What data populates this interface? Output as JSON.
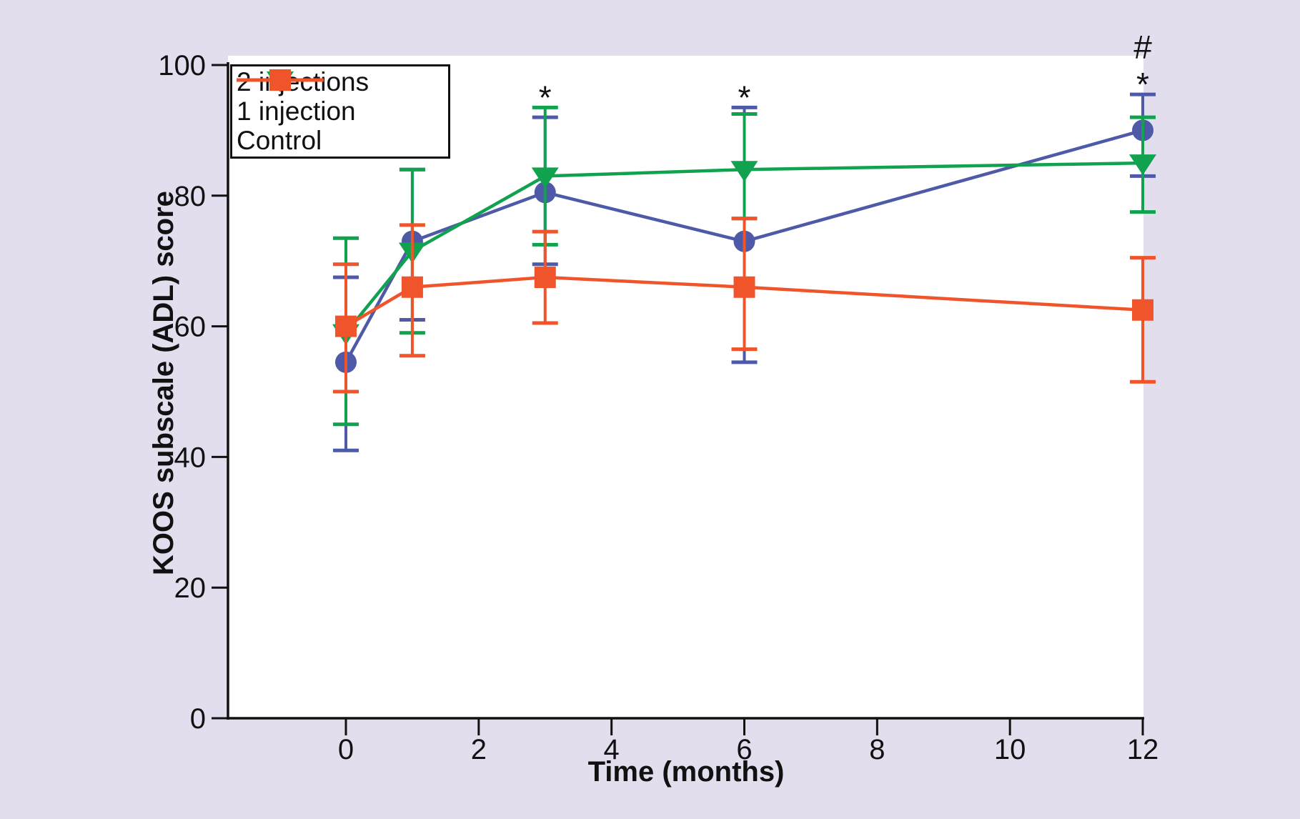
{
  "figure": {
    "background_color": "#e3deee",
    "plot_background_color": "#ffffff",
    "axis_color": "#111111"
  },
  "chart_data": {
    "type": "line",
    "title": "",
    "xlabel": "Time (months)",
    "ylabel": "KOOS subscale (ADL) score",
    "x": [
      0,
      1,
      3,
      6,
      12
    ],
    "x_ticks": [
      0,
      2,
      4,
      6,
      8,
      10,
      12
    ],
    "y_ticks": [
      0,
      20,
      40,
      60,
      80,
      100
    ],
    "xlim": [
      -1.8,
      12
    ],
    "ylim": [
      0,
      100
    ],
    "grid": false,
    "legend_position": "top-left",
    "error_bars": true,
    "series": [
      {
        "name": "2 injections",
        "color": "#4e5aa7",
        "marker": "circle",
        "values": [
          54.5,
          73,
          80.5,
          73,
          90
        ],
        "err_hi": [
          67.5,
          84,
          92,
          93.5,
          95.5
        ],
        "err_lo": [
          41,
          61,
          69.5,
          54.5,
          83
        ]
      },
      {
        "name": "1 injection",
        "color": "#10a24e",
        "marker": "triangle-down",
        "values": [
          59,
          71.5,
          83,
          84,
          85
        ],
        "err_hi": [
          73.5,
          84,
          93.5,
          92.5,
          92
        ],
        "err_lo": [
          45,
          59,
          72.5,
          76.5,
          77.5
        ]
      },
      {
        "name": "Control",
        "color": "#f0542a",
        "marker": "square",
        "values": [
          60,
          66,
          67.5,
          66,
          62.5
        ],
        "err_hi": [
          69.5,
          75.5,
          74.5,
          76.5,
          70.5
        ],
        "err_lo": [
          50,
          55.5,
          60.5,
          56.5,
          51.5
        ]
      }
    ],
    "annotations": [
      {
        "month": 3,
        "symbol": "*",
        "level": 0
      },
      {
        "month": 6,
        "symbol": "*",
        "level": 0
      },
      {
        "month": 12,
        "symbol": "*",
        "level": 0
      },
      {
        "month": 12,
        "symbol": "#",
        "level": 1
      }
    ]
  }
}
